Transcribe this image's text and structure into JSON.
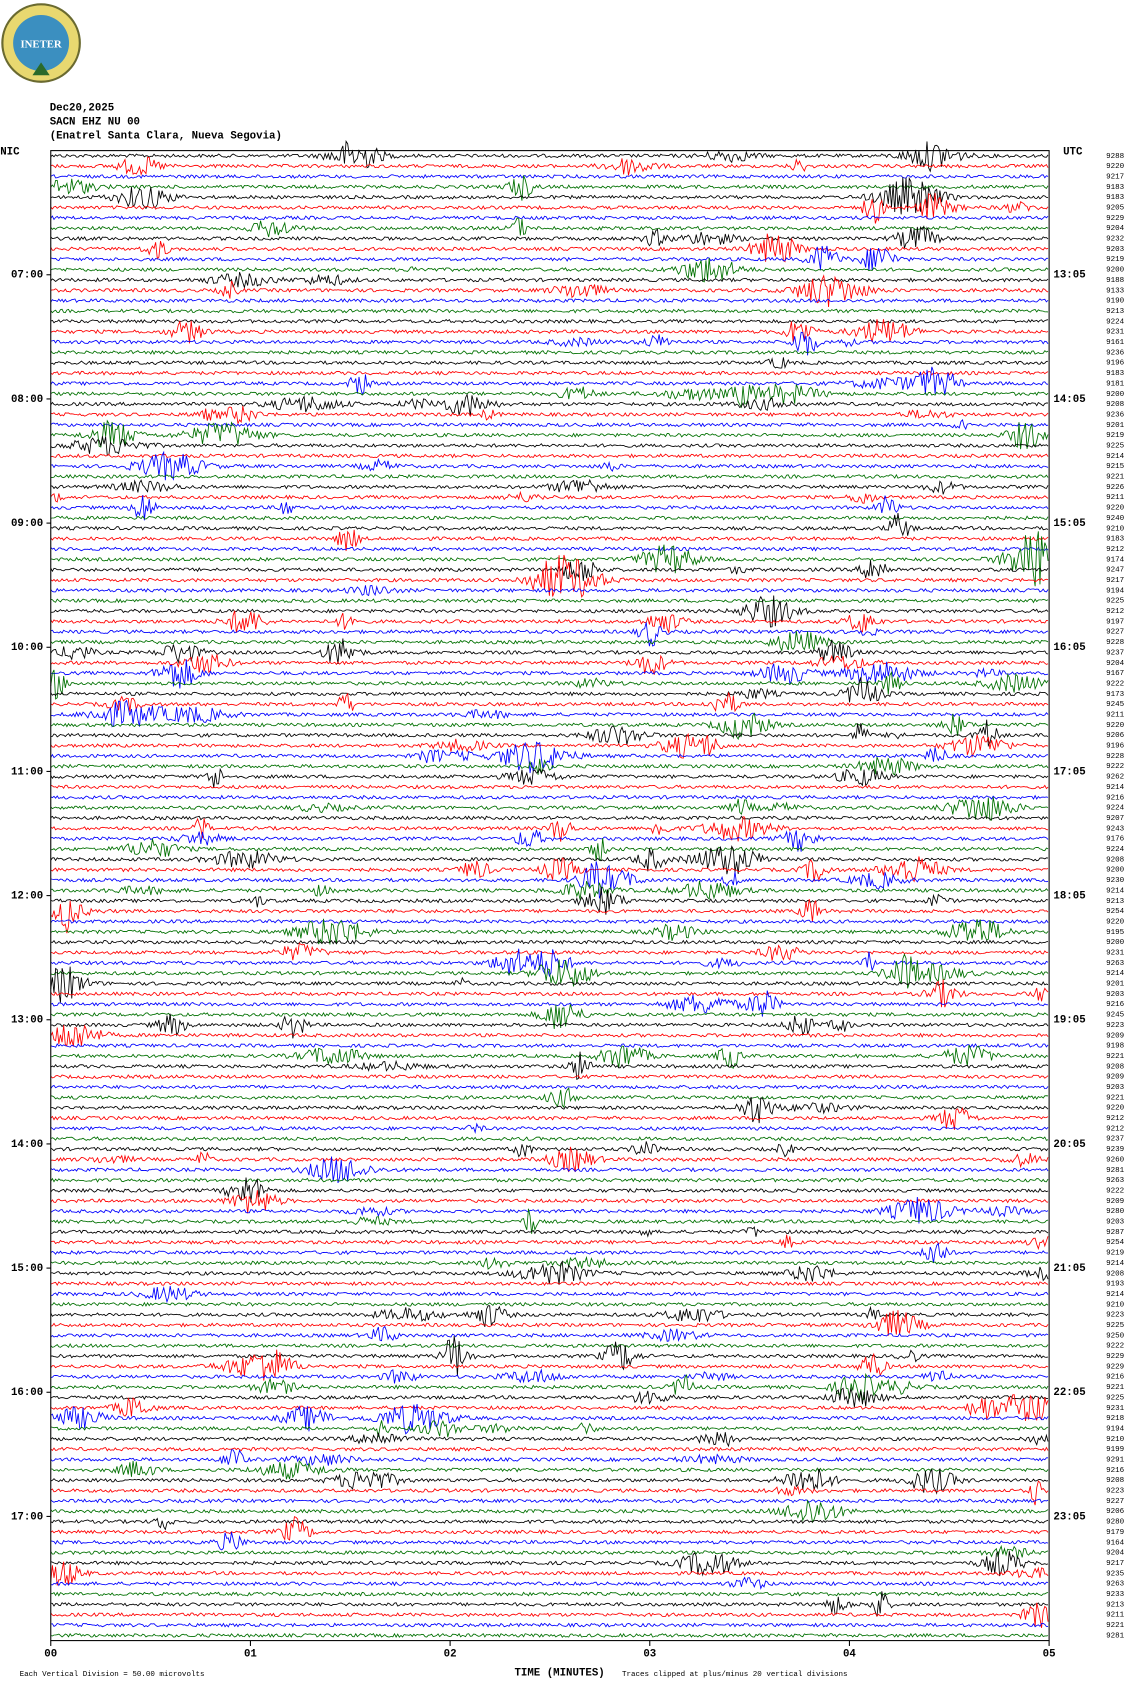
{
  "header": {
    "logo": "INETER",
    "date": "Dec20,2025",
    "station": "SACN EHZ NU 00",
    "location": "(Enatrel Santa Clara, Nueva Segovia)",
    "left_zone": "NIC",
    "right_zone": "UTC"
  },
  "chart_data": {
    "type": "helicorder",
    "x_label": "TIME (MINUTES)",
    "xlim": [
      0,
      5
    ],
    "xticks": [
      {
        "value": 0,
        "label": "00"
      },
      {
        "value": 1,
        "label": "01"
      },
      {
        "value": 2,
        "label": "02"
      },
      {
        "value": 3,
        "label": "03"
      },
      {
        "value": 4,
        "label": "04"
      },
      {
        "value": 5,
        "label": "05"
      }
    ],
    "left_times": [
      "07:00",
      "08:00",
      "09:00",
      "10:00",
      "11:00",
      "12:00",
      "13:00",
      "14:00",
      "15:00",
      "16:00",
      "17:00"
    ],
    "right_times": [
      "13:05",
      "14:05",
      "15:05",
      "16:05",
      "17:05",
      "18:05",
      "19:05",
      "20:05",
      "21:05",
      "22:05",
      "23:05"
    ],
    "trace_colors": [
      "#000000",
      "#ff0000",
      "#0000ff",
      "#007000"
    ],
    "trace_labels": [
      "9288",
      "9220",
      "9217",
      "9183",
      "9183",
      "9205",
      "9229",
      "9204",
      "9232",
      "9203",
      "9219",
      "9200",
      "9188",
      "9133",
      "9190",
      "9213",
      "9224",
      "9231",
      "9161",
      "9236",
      "9196",
      "9183",
      "9181",
      "9200",
      "9208",
      "9236",
      "9201",
      "9219",
      "9225",
      "9214",
      "9215",
      "9221",
      "9226",
      "9211",
      "9220",
      "9240",
      "9210",
      "9183",
      "9212",
      "9174",
      "9247",
      "9217",
      "9194",
      "9225",
      "9212",
      "9197",
      "9227",
      "9228",
      "9237",
      "9204",
      "9167",
      "9222",
      "9173",
      "9245",
      "9211",
      "9220",
      "9206",
      "9196",
      "9228",
      "9222",
      "9262",
      "9214",
      "9216",
      "9224",
      "9207",
      "9243",
      "9176",
      "9224",
      "9208",
      "9200",
      "9230",
      "9214",
      "9213",
      "9254",
      "9220",
      "9195",
      "9200",
      "9231",
      "9263",
      "9214",
      "9201",
      "9203",
      "9216",
      "9245",
      "9223",
      "9209",
      "9198",
      "9221",
      "9208",
      "9209",
      "9203",
      "9221",
      "9220",
      "9212",
      "9212",
      "9237",
      "9239",
      "9260",
      "9281",
      "9263",
      "9222",
      "9209",
      "9280",
      "9203",
      "9287",
      "9254",
      "9219",
      "9214",
      "9208",
      "9193",
      "9214",
      "9210",
      "9223",
      "9225",
      "9250",
      "9222",
      "9229",
      "9229",
      "9216",
      "9221",
      "9225",
      "9231",
      "9218",
      "9194",
      "9210",
      "9199",
      "9291",
      "9216",
      "9208",
      "9223",
      "9227",
      "9206",
      "9280",
      "9179",
      "9164",
      "9204",
      "9217",
      "9235",
      "9263",
      "9233",
      "9213",
      "9211",
      "9221",
      "9281"
    ],
    "footnote_left": "Each Vertical Division =   50.00 microvolts",
    "footnote_right": "Traces clipped at plus/minus 20 vertical divisions"
  }
}
